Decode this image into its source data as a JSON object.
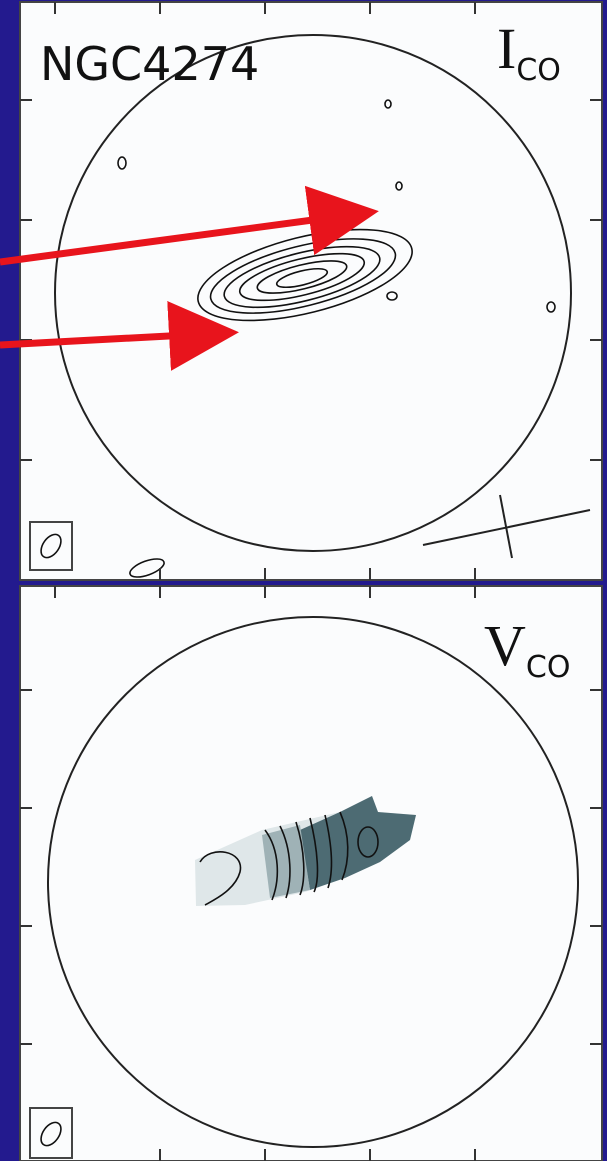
{
  "panels": [
    {
      "label": "NGC4274",
      "quantity": {
        "main": "I",
        "sub": "CO"
      }
    },
    {
      "quantity": {
        "main": "V",
        "sub": "CO"
      }
    }
  ]
}
